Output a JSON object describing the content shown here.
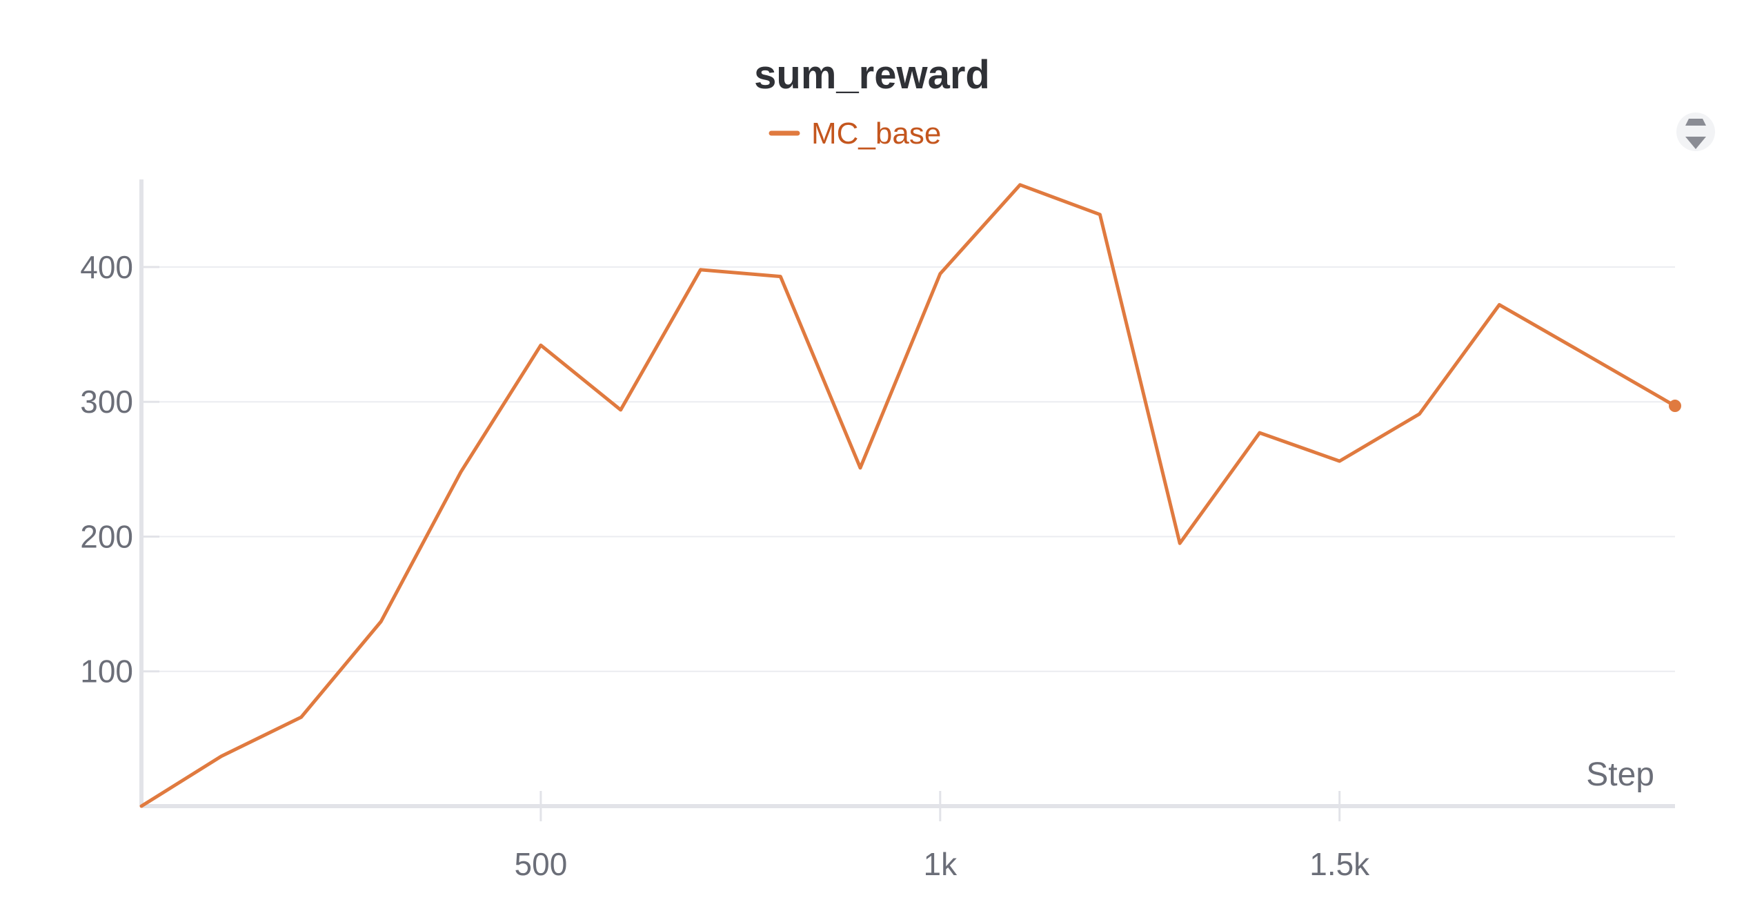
{
  "chart_data": {
    "type": "line",
    "title": "sum_reward",
    "xlabel": "Step",
    "ylabel": "",
    "xlim": [
      0,
      1920
    ],
    "ylim": [
      0,
      465
    ],
    "x_ticks": [
      {
        "value": 500,
        "label": "500"
      },
      {
        "value": 1000,
        "label": "1k"
      },
      {
        "value": 1500,
        "label": "1.5k"
      }
    ],
    "y_ticks": [
      {
        "value": 100,
        "label": "100"
      },
      {
        "value": 200,
        "label": "200"
      },
      {
        "value": 300,
        "label": "300"
      },
      {
        "value": 400,
        "label": "400"
      }
    ],
    "grid": true,
    "legend_position": "top-center",
    "series": [
      {
        "name": "MC_base",
        "color": "#e07a3f",
        "x": [
          0,
          100,
          200,
          300,
          400,
          500,
          600,
          700,
          800,
          900,
          1000,
          1100,
          1200,
          1300,
          1400,
          1500,
          1600,
          1700,
          1800,
          1920
        ],
        "y": [
          0,
          37,
          66,
          137,
          248,
          342,
          294,
          398,
          393,
          251,
          395,
          461,
          439,
          195,
          277,
          256,
          291,
          372,
          338,
          297
        ]
      }
    ]
  },
  "colors": {
    "axis": "#e2e3e8",
    "grid": "#ebecf0",
    "tick_text": "#6b6e78",
    "title_text": "#2f3136",
    "legend_text": "#c4561e",
    "icon": "#8a8c94"
  },
  "icons": {
    "menu": "drag-handle-icon"
  }
}
